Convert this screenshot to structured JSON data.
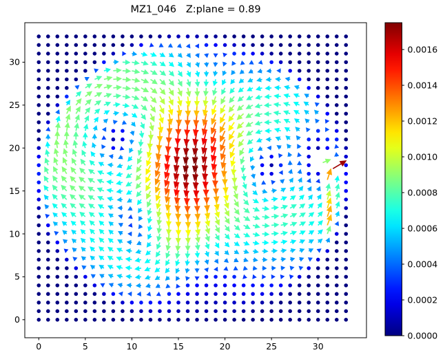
{
  "title": "MZ1_046   Z:plane = 0.89",
  "chart_data": {
    "type": "quiver",
    "title": "MZ1_046   Z:plane = 0.89",
    "xlabel": "",
    "ylabel": "",
    "x_ticks": [
      0,
      5,
      10,
      15,
      20,
      25,
      30
    ],
    "y_ticks": [
      0,
      5,
      10,
      15,
      20,
      25,
      30
    ],
    "xlim": [
      -1.5,
      35.2
    ],
    "ylim": [
      -2.1,
      34.6
    ],
    "grid": {
      "x_min": 0,
      "x_max": 33,
      "y_min": 0,
      "y_max": 33,
      "step": 1
    },
    "colormap": "jet",
    "vmin": 0.0,
    "vmax": 0.00175,
    "colorbar": {
      "tick_labels": [
        "0.0000",
        "0.0002",
        "0.0004",
        "0.0006",
        "0.0008",
        "0.0010",
        "0.0012",
        "0.0014",
        "0.0016"
      ],
      "tick_step": 0.0002,
      "position": "right"
    },
    "field_model": {
      "description": "two counter-rotating vortices with central downward jet inside circular domain; near-zero vectors render as dots",
      "mask": {
        "cx": 16.5,
        "cy": 16.4,
        "radius": 16.3,
        "edge": 1.6
      },
      "vortices": [
        {
          "cx": 9.0,
          "cy": 21.0,
          "core": 9.5,
          "peak": 0.00078,
          "sense": "cw"
        },
        {
          "cx": 23.8,
          "cy": 18.0,
          "core": 9.0,
          "peak": 0.0007,
          "sense": "ccw"
        },
        {
          "cx": 11.0,
          "cy": 9.0,
          "core": 5.0,
          "peak": 0.00038,
          "sense": "cw"
        }
      ],
      "down_jet": {
        "cx": 16.4,
        "cy": 17.0,
        "sx": 2.2,
        "sy": 7.0,
        "amp": 9e-05
      },
      "edge_channel": {
        "cx": 31.3,
        "cy": 11.5,
        "sx": 0.85,
        "sy": 5.0,
        "amp": 0.00085
      },
      "suppression": {
        "cx": 30.0,
        "cy": 19.0,
        "sx": 2.2,
        "sy": 4.5,
        "depth": 0.95
      },
      "dot_threshold": 0.0003,
      "overrides": [
        {
          "x": 31.6,
          "y": 17.6,
          "angle_deg": 31,
          "mag": 0.0017
        },
        {
          "x": 31.0,
          "y": 16.3,
          "angle_deg": 72,
          "mag": 0.00125
        },
        {
          "x": 30.5,
          "y": 18.3,
          "angle_deg": 22,
          "mag": 0.0009
        }
      ]
    }
  }
}
